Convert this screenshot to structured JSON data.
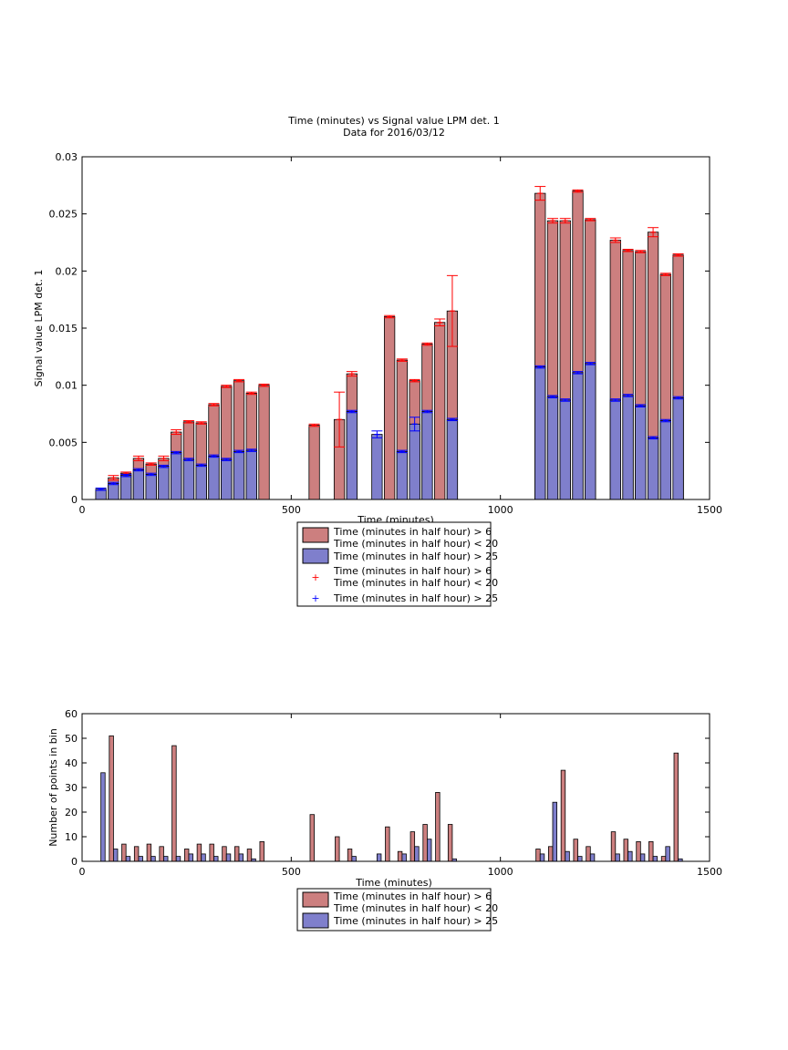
{
  "chart_data": [
    {
      "type": "bar",
      "title": "Time (minutes) vs Signal value LPM det. 1",
      "subtitle": "Data for 2016/03/12",
      "xlabel": "Time (minutes)",
      "ylabel": "Signal value LPM det. 1",
      "xlim": [
        0,
        1500
      ],
      "ylim": [
        0,
        0.03
      ],
      "xticks": [
        0,
        500,
        1000,
        1500
      ],
      "yticks": [
        0,
        0.005,
        0.01,
        0.015,
        0.02,
        0.025,
        0.03
      ],
      "ytick_labels": [
        "0",
        "0.005",
        "0.01",
        "0.015",
        "0.02",
        "0.025",
        "0.03"
      ],
      "grid": false,
      "legend_position": "below",
      "legend": [
        {
          "kind": "patch",
          "color": "#cc7f7f",
          "label": "Time (minutes in half hour) > 6",
          "label2": "Time (minutes in half hour) < 20"
        },
        {
          "kind": "patch",
          "color": "#7f7fcc",
          "label": "Time (minutes in half hour) > 25",
          "label2": ""
        },
        {
          "kind": "marker",
          "color": "#ff0000",
          "label": "Time (minutes in half hour) > 6",
          "label2": "Time (minutes in half hour) < 20"
        },
        {
          "kind": "marker",
          "color": "#0000ff",
          "label": "Time (minutes in half hour) > 25",
          "label2": ""
        }
      ],
      "series": [
        {
          "color": "#cc7f7f",
          "marker_color": "#ff0000",
          "x": [
            75,
            105,
            135,
            165,
            195,
            225,
            255,
            285,
            315,
            345,
            375,
            405,
            435,
            555,
            615,
            645,
            735,
            765,
            795,
            825,
            855,
            885,
            1095,
            1125,
            1155,
            1185,
            1215,
            1275,
            1305,
            1335,
            1365,
            1395,
            1425
          ],
          "values": [
            0.0019,
            0.0023,
            0.0036,
            0.0031,
            0.0036,
            0.0059,
            0.0068,
            0.0067,
            0.0083,
            0.0099,
            0.0104,
            0.0093,
            0.01,
            0.0065,
            0.007,
            0.011,
            0.016,
            0.0122,
            0.0104,
            0.0136,
            0.0155,
            0.0165,
            0.0268,
            0.0244,
            0.0244,
            0.027,
            0.0245,
            0.0227,
            0.0218,
            0.0217,
            0.0234,
            0.0197,
            0.0214
          ],
          "errors": [
            0.0002,
            0.0001,
            0.0002,
            0.0001,
            0.0002,
            0.0002,
            0.0001,
            0.0001,
            0.0001,
            0.0001,
            0.0001,
            0.0001,
            0.0001,
            0.0001,
            0.0024,
            0.0002,
            0.0001,
            0.0001,
            0.0001,
            0.0001,
            0.0003,
            0.0031,
            0.0006,
            0.0002,
            0.0002,
            0.0001,
            0.0001,
            0.0002,
            0.0001,
            0.0001,
            0.0004,
            0.0001,
            0.0001
          ]
        },
        {
          "color": "#7f7fcc",
          "marker_color": "#0000ff",
          "x": [
            45,
            75,
            105,
            135,
            165,
            195,
            225,
            255,
            285,
            315,
            345,
            375,
            405,
            645,
            705,
            765,
            795,
            825,
            885,
            1095,
            1125,
            1155,
            1185,
            1215,
            1275,
            1305,
            1335,
            1365,
            1395,
            1425
          ],
          "values": [
            0.0009,
            0.0014,
            0.0021,
            0.0026,
            0.0022,
            0.0029,
            0.0041,
            0.0035,
            0.003,
            0.0038,
            0.0035,
            0.0042,
            0.0043,
            0.0077,
            0.0057,
            0.0042,
            0.0066,
            0.0077,
            0.007,
            0.0116,
            0.009,
            0.0087,
            0.0111,
            0.0119,
            0.0087,
            0.0091,
            0.0082,
            0.0054,
            0.0069,
            0.0089
          ],
          "errors": [
            0.0001,
            0.0001,
            0.0001,
            0.0001,
            0.0001,
            0.0001,
            0.0001,
            0.0001,
            0.0001,
            0.0001,
            0.0001,
            0.0001,
            0.0001,
            0.0001,
            0.0003,
            0.0001,
            0.0006,
            0.0001,
            0.0001,
            0.0001,
            0.0001,
            0.0001,
            0.0001,
            0.0001,
            0.0001,
            0.0001,
            0.0001,
            0.0001,
            0.0001,
            0.0001
          ]
        }
      ]
    },
    {
      "type": "bar",
      "xlabel": "Time (minutes)",
      "ylabel": "Number of points in bin",
      "xlim": [
        0,
        1500
      ],
      "ylim": [
        0,
        60
      ],
      "xticks": [
        0,
        500,
        1000,
        1500
      ],
      "yticks": [
        0,
        10,
        20,
        30,
        40,
        50,
        60
      ],
      "ytick_labels": [
        "0",
        "10",
        "20",
        "30",
        "40",
        "50",
        "60"
      ],
      "grid": false,
      "legend_position": "below",
      "legend": [
        {
          "kind": "patch",
          "color": "#cc7f7f",
          "label": "Time (minutes in half hour) > 6",
          "label2": "Time (minutes in half hour) < 20"
        },
        {
          "kind": "patch",
          "color": "#7f7fcc",
          "label": "Time (minutes in half hour) > 25",
          "label2": ""
        }
      ],
      "series": [
        {
          "color": "#cc7f7f",
          "x": [
            70,
            100,
            130,
            160,
            190,
            220,
            250,
            280,
            310,
            340,
            370,
            400,
            430,
            550,
            610,
            640,
            730,
            760,
            790,
            820,
            850,
            880,
            1090,
            1120,
            1150,
            1180,
            1210,
            1270,
            1300,
            1330,
            1360,
            1390,
            1420
          ],
          "values": [
            51,
            7,
            6,
            7,
            6,
            47,
            5,
            7,
            7,
            6,
            6,
            5,
            8,
            19,
            10,
            5,
            14,
            4,
            12,
            15,
            28,
            15,
            5,
            6,
            37,
            9,
            6,
            12,
            9,
            8,
            8,
            2,
            44
          ]
        },
        {
          "color": "#7f7fcc",
          "x": [
            50,
            80,
            110,
            140,
            170,
            200,
            230,
            260,
            290,
            320,
            350,
            380,
            410,
            650,
            710,
            770,
            800,
            830,
            890,
            1100,
            1130,
            1160,
            1190,
            1220,
            1280,
            1310,
            1340,
            1370,
            1400,
            1430
          ],
          "values": [
            36,
            5,
            2,
            2,
            2,
            2,
            2,
            3,
            3,
            2,
            3,
            3,
            1,
            2,
            3,
            3,
            6,
            9,
            1,
            3,
            24,
            4,
            2,
            3,
            3,
            4,
            3,
            2,
            6,
            1
          ]
        }
      ]
    }
  ]
}
